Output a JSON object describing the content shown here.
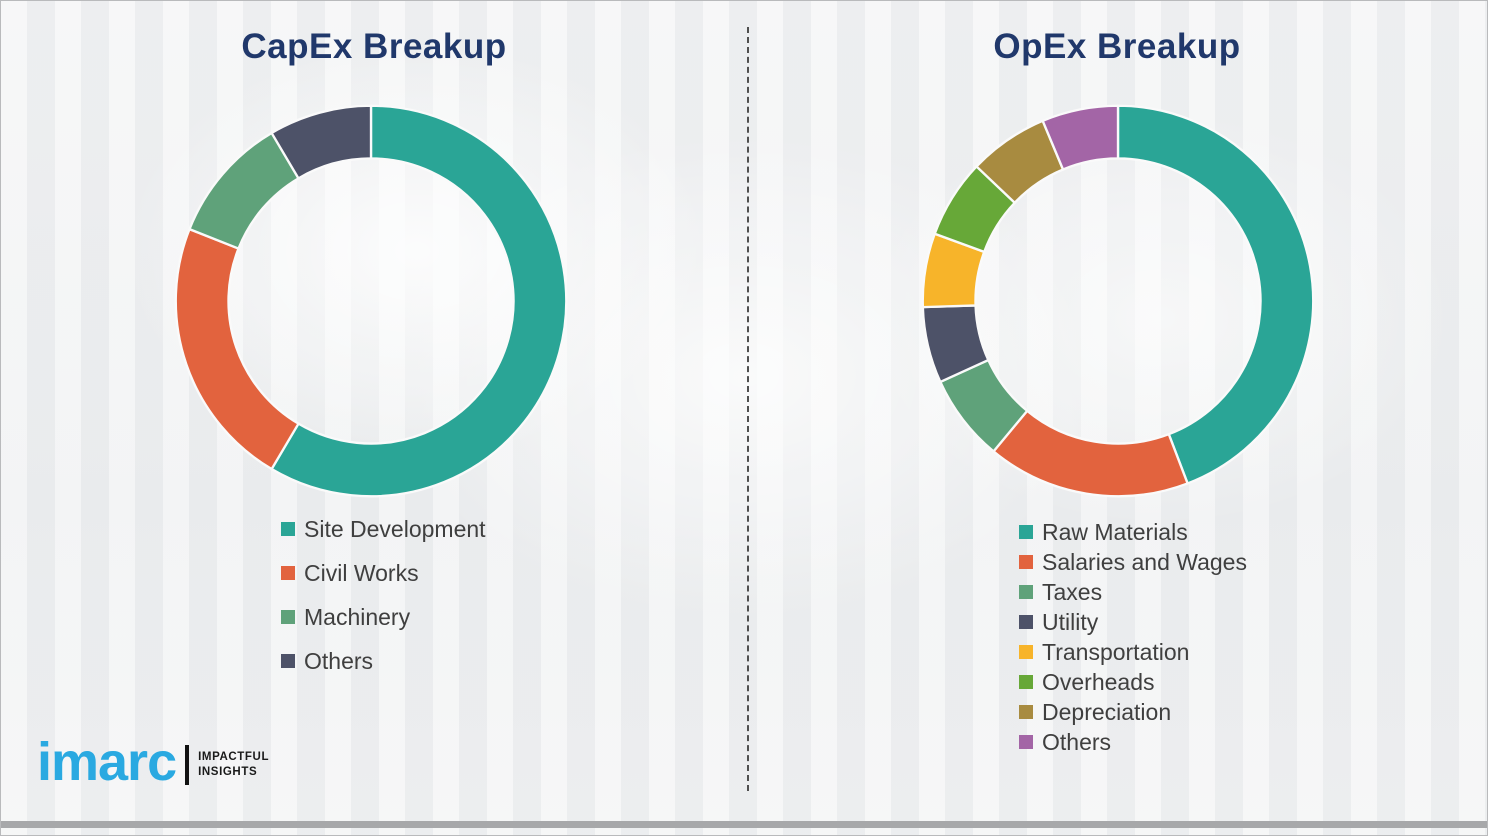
{
  "theme": {
    "background": "#f2f3f4",
    "title_color": "#20386b",
    "legend_text_color": "#3f3f3f",
    "divider_color": "#4f4f4f",
    "segment_gap_color": "#fafafa"
  },
  "logo": {
    "brand": "imarc",
    "brand_color": "#2aa9e1",
    "tagline_line1": "IMPACTFUL",
    "tagline_line2": "INSIGHTS",
    "tagline_color": "#1a1a1a"
  },
  "chart_data": [
    {
      "type": "pie",
      "subtype": "donut",
      "title": "CapEx Breakup",
      "labels": [
        "Site Development",
        "Civil Works",
        "Machinery",
        "Others"
      ],
      "values": [
        58.5,
        22.5,
        10.5,
        8.5
      ],
      "unit": "percent",
      "colors": [
        "#2aa596",
        "#e2633e",
        "#5fa27a",
        "#4d5268"
      ],
      "start_angle_deg": 0,
      "direction": "clockwise",
      "inner_radius_ratio": 0.73,
      "legend_position": "bottom-left",
      "data_labels": "none"
    },
    {
      "type": "pie",
      "subtype": "donut",
      "title": "OpEx Breakup",
      "labels": [
        "Raw Materials",
        "Salaries and Wages",
        "Taxes",
        "Utility",
        "Transportation",
        "Overheads",
        "Depreciation",
        "Others"
      ],
      "values": [
        44.2,
        16.8,
        7.2,
        6.3,
        6.1,
        6.5,
        6.6,
        6.3
      ],
      "unit": "percent",
      "colors": [
        "#2aa596",
        "#e2633e",
        "#5fa27a",
        "#4d5268",
        "#f7b42a",
        "#67a838",
        "#a88b40",
        "#a365a6"
      ],
      "start_angle_deg": 0,
      "direction": "clockwise",
      "inner_radius_ratio": 0.73,
      "legend_position": "bottom-left",
      "data_labels": "none"
    }
  ]
}
